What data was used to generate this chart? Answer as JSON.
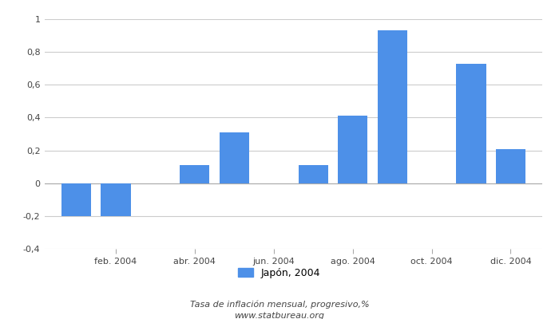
{
  "months_x": [
    1,
    2,
    3,
    4,
    5,
    6,
    7,
    8,
    9,
    10,
    11,
    12
  ],
  "values": [
    -0.2,
    -0.2,
    null,
    0.11,
    0.31,
    null,
    0.11,
    0.41,
    0.93,
    null,
    0.73,
    0.21
  ],
  "bar_color": "#4d90e8",
  "xtick_positions": [
    2,
    4,
    6,
    8,
    10,
    12
  ],
  "xtick_labels": [
    "feb. 2004",
    "abr. 2004",
    "jun. 2004",
    "ago. 2004",
    "oct. 2004",
    "dic. 2004"
  ],
  "ylim": [
    -0.4,
    1.0
  ],
  "yticks": [
    -0.4,
    -0.2,
    0.0,
    0.2,
    0.4,
    0.6,
    0.8,
    1.0
  ],
  "ytick_labels": [
    "-0,4",
    "-0,2",
    "0",
    "0,2",
    "0,4",
    "0,6",
    "0,8",
    "1"
  ],
  "legend_label": "Japón, 2004",
  "footer_line1": "Tasa de inflación mensual, progresivo,%",
  "footer_line2": "www.statbureau.org",
  "background_color": "#ffffff",
  "grid_color": "#cccccc",
  "bar_width": 0.75,
  "xlim": [
    0.2,
    12.8
  ]
}
